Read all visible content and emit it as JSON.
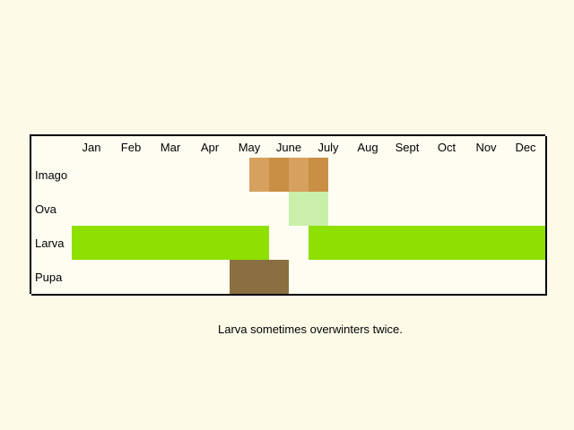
{
  "months": [
    "Jan",
    "Feb",
    "Mar",
    "Apr",
    "May",
    "June",
    "July",
    "Aug",
    "Sept",
    "Oct",
    "Nov",
    "Dec"
  ],
  "rows": [
    {
      "label": "Imago",
      "color": "#d6a15e",
      "accent": "#c98f44",
      "cells": [
        0,
        0,
        0,
        0,
        0,
        0,
        0,
        0,
        0,
        1,
        1,
        1,
        1,
        0,
        0,
        0,
        0,
        0,
        0,
        0,
        0,
        0,
        0,
        0
      ]
    },
    {
      "label": "Ova",
      "color": "#c9efaa",
      "accent": "#c9efaa",
      "cells": [
        0,
        0,
        0,
        0,
        0,
        0,
        0,
        0,
        0,
        0,
        0,
        1,
        1,
        0,
        0,
        0,
        0,
        0,
        0,
        0,
        0,
        0,
        0,
        0
      ]
    },
    {
      "label": "Larva",
      "color": "#8ee000",
      "accent": "#8ee000",
      "cells": [
        1,
        1,
        1,
        1,
        1,
        1,
        1,
        1,
        1,
        1,
        0,
        0,
        1,
        1,
        1,
        1,
        1,
        1,
        1,
        1,
        1,
        1,
        1,
        1
      ]
    },
    {
      "label": "Pupa",
      "color": "#8a7040",
      "accent": "#8a7040",
      "cells": [
        0,
        0,
        0,
        0,
        0,
        0,
        0,
        0,
        1,
        1,
        1,
        0,
        0,
        0,
        0,
        0,
        0,
        0,
        0,
        0,
        0,
        0,
        0,
        0
      ]
    }
  ],
  "note": "Larva sometimes overwinters twice."
}
